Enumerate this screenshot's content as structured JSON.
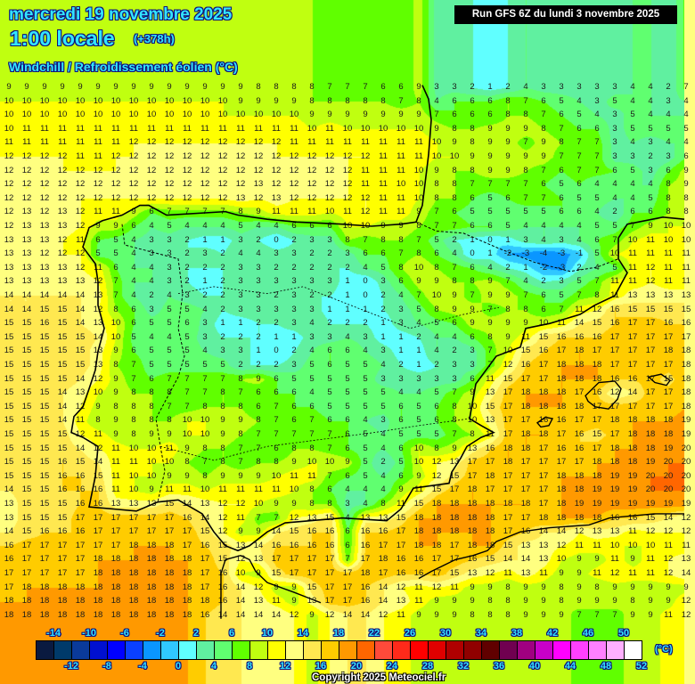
{
  "header": {
    "date": "mercredi 19 novembre 2025",
    "time": "1:00 locale",
    "lead": "(+378h)",
    "parameter": "Windchill / Refroidissement éolien (°C)"
  },
  "run_info": "Run GFS 6Z du lundi 3 novembre 2025",
  "copyright": "Copyright 2025 Meteociel.fr",
  "legend": {
    "unit": "(°C)",
    "min": -16,
    "step": 2,
    "top_labels": [
      "-14",
      "-10",
      "-6",
      "-2",
      "2",
      "6",
      "10",
      "14",
      "18",
      "22",
      "26",
      "30",
      "34",
      "38",
      "42",
      "46",
      "50"
    ],
    "bottom_labels": [
      "-12",
      "-8",
      "-4",
      "0",
      "4",
      "8",
      "12",
      "16",
      "20",
      "24",
      "28",
      "32",
      "36",
      "40",
      "44",
      "48",
      "52"
    ],
    "colors": [
      "#0a1a40",
      "#003a6a",
      "#0a3a9a",
      "#0010d0",
      "#0000ff",
      "#0a40ff",
      "#0a96ff",
      "#30c8ff",
      "#60ffff",
      "#60f0a0",
      "#60ff70",
      "#60ff00",
      "#c0ff10",
      "#ffff00",
      "#ffff80",
      "#ffe850",
      "#ffcc00",
      "#ff9900",
      "#ff6600",
      "#ff4a3a",
      "#ff2a1a",
      "#ff0000",
      "#e00000",
      "#b00000",
      "#900000",
      "#600000",
      "#700050",
      "#a00080",
      "#c800c8",
      "#ff00ff",
      "#ff40ff",
      "#ff80ff",
      "#ffb0ff",
      "#ffffff"
    ]
  },
  "grid": [
    [
      9,
      9,
      9,
      9,
      9,
      9,
      9,
      9,
      9,
      9,
      9,
      9,
      9,
      9,
      8,
      8,
      8,
      8,
      7,
      7,
      7,
      6,
      6,
      9,
      3,
      3,
      2,
      1,
      2,
      4,
      3,
      3,
      3,
      3,
      3,
      4,
      4,
      2,
      7
    ],
    [
      10,
      10,
      10,
      10,
      10,
      10,
      10,
      10,
      10,
      10,
      10,
      10,
      10,
      9,
      9,
      9,
      9,
      8,
      8,
      8,
      8,
      8,
      7,
      8,
      4,
      6,
      6,
      6,
      8,
      7,
      6,
      5,
      4,
      3,
      5,
      4,
      4,
      3,
      4
    ],
    [
      10,
      10,
      10,
      10,
      10,
      10,
      10,
      10,
      10,
      10,
      10,
      10,
      10,
      10,
      10,
      10,
      10,
      9,
      9,
      9,
      9,
      9,
      9,
      9,
      7,
      6,
      6,
      6,
      8,
      8,
      7,
      6,
      5,
      4,
      3,
      5,
      4,
      4,
      4
    ],
    [
      10,
      11,
      11,
      11,
      11,
      11,
      11,
      11,
      11,
      11,
      11,
      11,
      11,
      11,
      11,
      11,
      11,
      10,
      11,
      10,
      10,
      10,
      10,
      10,
      9,
      8,
      8,
      9,
      9,
      9,
      8,
      7,
      6,
      6,
      3,
      5,
      5,
      5,
      5
    ],
    [
      11,
      11,
      11,
      11,
      11,
      11,
      11,
      12,
      12,
      12,
      12,
      12,
      12,
      12,
      12,
      12,
      11,
      11,
      11,
      11,
      11,
      11,
      11,
      11,
      10,
      9,
      8,
      9,
      9,
      7,
      9,
      8,
      7,
      7,
      3,
      4,
      3,
      4,
      4
    ],
    [
      12,
      12,
      12,
      12,
      11,
      11,
      12,
      12,
      12,
      12,
      12,
      12,
      12,
      12,
      12,
      12,
      12,
      12,
      12,
      12,
      12,
      11,
      11,
      11,
      10,
      10,
      9,
      9,
      9,
      9,
      9,
      7,
      7,
      7,
      3,
      3,
      2,
      3,
      6
    ],
    [
      12,
      12,
      12,
      12,
      12,
      12,
      12,
      12,
      12,
      12,
      12,
      12,
      12,
      12,
      12,
      12,
      12,
      12,
      12,
      12,
      11,
      11,
      11,
      10,
      9,
      8,
      8,
      9,
      9,
      8,
      7,
      6,
      7,
      7,
      6,
      5,
      3,
      6,
      9
    ],
    [
      12,
      12,
      12,
      12,
      12,
      12,
      12,
      12,
      12,
      12,
      12,
      12,
      12,
      12,
      13,
      12,
      12,
      12,
      12,
      12,
      11,
      11,
      10,
      10,
      8,
      8,
      7,
      7,
      7,
      7,
      6,
      5,
      6,
      4,
      4,
      4,
      4,
      8,
      9
    ],
    [
      12,
      12,
      12,
      12,
      12,
      12,
      12,
      12,
      12,
      12,
      12,
      12,
      12,
      13,
      12,
      13,
      12,
      12,
      12,
      12,
      12,
      11,
      11,
      10,
      8,
      8,
      6,
      5,
      6,
      7,
      7,
      6,
      5,
      5,
      4,
      4,
      5,
      8,
      8
    ],
    [
      12,
      13,
      12,
      13,
      12,
      11,
      11,
      9,
      6,
      7,
      7,
      7,
      7,
      8,
      9,
      11,
      11,
      11,
      10,
      11,
      12,
      11,
      11,
      9,
      7,
      6,
      5,
      5,
      5,
      5,
      5,
      6,
      6,
      4,
      2,
      6,
      6,
      8,
      8
    ],
    [
      12,
      13,
      13,
      13,
      12,
      9,
      9,
      6,
      4,
      5,
      4,
      4,
      4,
      5,
      4,
      4,
      6,
      6,
      6,
      10,
      10,
      9,
      9,
      8,
      7,
      7,
      6,
      6,
      5,
      4,
      4,
      4,
      4,
      5,
      5,
      7,
      9,
      10,
      10
    ],
    [
      13,
      13,
      13,
      12,
      11,
      6,
      5,
      4,
      3,
      3,
      2,
      1,
      1,
      3,
      2,
      0,
      2,
      3,
      3,
      8,
      7,
      8,
      8,
      7,
      5,
      2,
      1,
      0,
      1,
      3,
      4,
      3,
      4,
      6,
      7,
      10,
      11,
      10,
      10
    ],
    [
      13,
      13,
      12,
      12,
      12,
      5,
      5,
      4,
      3,
      3,
      2,
      3,
      2,
      4,
      4,
      3,
      3,
      2,
      2,
      3,
      6,
      6,
      7,
      8,
      6,
      4,
      0,
      1,
      -2,
      -3,
      -4,
      -3,
      -1,
      5,
      10,
      11,
      11,
      11,
      11
    ],
    [
      13,
      13,
      13,
      13,
      12,
      11,
      6,
      4,
      4,
      3,
      2,
      2,
      2,
      3,
      3,
      2,
      2,
      2,
      2,
      2,
      4,
      5,
      8,
      10,
      8,
      7,
      6,
      4,
      2,
      1,
      -2,
      -3,
      2,
      4,
      5,
      11,
      12,
      11,
      11
    ],
    [
      13,
      13,
      13,
      13,
      13,
      12,
      7,
      4,
      4,
      3,
      2,
      1,
      2,
      3,
      3,
      3,
      3,
      3,
      3,
      1,
      0,
      3,
      6,
      9,
      9,
      8,
      8,
      9,
      7,
      4,
      2,
      3,
      5,
      7,
      11,
      11,
      12,
      11,
      11
    ],
    [
      14,
      14,
      14,
      14,
      14,
      13,
      7,
      4,
      2,
      4,
      3,
      2,
      2,
      3,
      3,
      2,
      3,
      2,
      2,
      1,
      0,
      2,
      4,
      7,
      10,
      9,
      7,
      9,
      9,
      7,
      6,
      5,
      7,
      8,
      11,
      13,
      13,
      13,
      13
    ],
    [
      14,
      14,
      15,
      15,
      14,
      12,
      8,
      6,
      3,
      5,
      5,
      4,
      2,
      3,
      3,
      3,
      3,
      3,
      1,
      1,
      1,
      2,
      3,
      5,
      8,
      9,
      9,
      7,
      8,
      8,
      6,
      7,
      11,
      12,
      16,
      15,
      15,
      15,
      15
    ],
    [
      15,
      15,
      16,
      15,
      14,
      13,
      10,
      6,
      5,
      5,
      6,
      3,
      1,
      1,
      2,
      2,
      3,
      4,
      2,
      2,
      2,
      1,
      3,
      4,
      5,
      6,
      9,
      9,
      9,
      9,
      10,
      11,
      14,
      15,
      16,
      17,
      17,
      16,
      16
    ],
    [
      15,
      15,
      15,
      15,
      15,
      14,
      10,
      5,
      4,
      4,
      5,
      3,
      2,
      2,
      2,
      1,
      1,
      3,
      3,
      4,
      3,
      1,
      1,
      2,
      4,
      4,
      6,
      8,
      9,
      11,
      15,
      16,
      16,
      16,
      17,
      17,
      17,
      17,
      17
    ],
    [
      15,
      15,
      15,
      15,
      15,
      13,
      9,
      6,
      5,
      5,
      5,
      4,
      3,
      3,
      1,
      0,
      2,
      4,
      6,
      6,
      4,
      3,
      1,
      1,
      4,
      2,
      3,
      7,
      10,
      15,
      16,
      17,
      18,
      17,
      17,
      17,
      17,
      18,
      18
    ],
    [
      15,
      15,
      15,
      15,
      15,
      13,
      8,
      7,
      5,
      5,
      5,
      5,
      5,
      2,
      2,
      2,
      3,
      5,
      6,
      5,
      5,
      4,
      2,
      1,
      2,
      3,
      3,
      7,
      12,
      16,
      17,
      18,
      18,
      18,
      17,
      17,
      17,
      17,
      18
    ],
    [
      15,
      15,
      15,
      15,
      14,
      12,
      9,
      7,
      6,
      7,
      7,
      7,
      7,
      8,
      9,
      6,
      5,
      5,
      5,
      5,
      5,
      3,
      3,
      3,
      3,
      3,
      6,
      11,
      15,
      17,
      17,
      18,
      18,
      18,
      16,
      16,
      17,
      15,
      18
    ],
    [
      15,
      15,
      15,
      14,
      13,
      10,
      9,
      8,
      8,
      8,
      7,
      7,
      8,
      7,
      6,
      6,
      6,
      4,
      5,
      5,
      5,
      5,
      4,
      4,
      5,
      7,
      9,
      13,
      17,
      18,
      18,
      18,
      17,
      16,
      12,
      14,
      17,
      17,
      18
    ],
    [
      15,
      15,
      15,
      14,
      12,
      9,
      8,
      8,
      8,
      7,
      7,
      8,
      8,
      8,
      6,
      7,
      6,
      6,
      5,
      5,
      5,
      5,
      6,
      5,
      6,
      8,
      10,
      15,
      17,
      18,
      18,
      18,
      18,
      17,
      17,
      17,
      17,
      17,
      18
    ],
    [
      15,
      15,
      15,
      14,
      11,
      8,
      9,
      8,
      8,
      8,
      10,
      10,
      9,
      9,
      8,
      7,
      6,
      7,
      6,
      6,
      4,
      3,
      6,
      5,
      6,
      8,
      10,
      13,
      17,
      17,
      16,
      16,
      17,
      17,
      18,
      18,
      18,
      18,
      19
    ],
    [
      15,
      15,
      15,
      15,
      12,
      11,
      9,
      8,
      9,
      9,
      10,
      10,
      9,
      8,
      7,
      7,
      7,
      7,
      7,
      6,
      5,
      4,
      5,
      5,
      5,
      7,
      8,
      11,
      17,
      18,
      18,
      17,
      16,
      15,
      17,
      18,
      18,
      18,
      19
    ],
    [
      15,
      15,
      15,
      15,
      14,
      12,
      11,
      10,
      10,
      11,
      9,
      8,
      8,
      7,
      7,
      6,
      8,
      8,
      7,
      6,
      5,
      4,
      6,
      10,
      8,
      9,
      13,
      16,
      18,
      18,
      17,
      16,
      16,
      17,
      18,
      18,
      18,
      19,
      20
    ],
    [
      15,
      15,
      15,
      16,
      15,
      14,
      11,
      11,
      10,
      10,
      8,
      7,
      8,
      7,
      8,
      8,
      9,
      10,
      10,
      9,
      5,
      2,
      5,
      10,
      12,
      13,
      17,
      17,
      18,
      17,
      17,
      17,
      17,
      18,
      18,
      18,
      19,
      20,
      20
    ],
    [
      15,
      15,
      15,
      16,
      16,
      15,
      11,
      10,
      10,
      9,
      9,
      8,
      9,
      9,
      9,
      10,
      11,
      11,
      7,
      6,
      5,
      4,
      6,
      9,
      12,
      15,
      17,
      18,
      17,
      17,
      17,
      18,
      18,
      18,
      19,
      19,
      20,
      20,
      20
    ],
    [
      14,
      15,
      15,
      16,
      16,
      16,
      11,
      10,
      9,
      11,
      11,
      10,
      11,
      11,
      11,
      11,
      10,
      8,
      6,
      4,
      4,
      4,
      9,
      11,
      15,
      17,
      18,
      17,
      17,
      17,
      17,
      18,
      18,
      19,
      19,
      19,
      20,
      20,
      20
    ],
    [
      13,
      15,
      15,
      15,
      16,
      16,
      13,
      13,
      13,
      15,
      14,
      13,
      12,
      12,
      10,
      9,
      9,
      8,
      8,
      3,
      4,
      8,
      11,
      15,
      18,
      18,
      18,
      18,
      18,
      18,
      17,
      18,
      19,
      19,
      19,
      19,
      19,
      19,
      19
    ],
    [
      13,
      15,
      15,
      15,
      17,
      17,
      17,
      17,
      17,
      17,
      16,
      14,
      12,
      11,
      7,
      7,
      12,
      13,
      15,
      4,
      13,
      13,
      15,
      18,
      18,
      18,
      18,
      18,
      17,
      17,
      18,
      18,
      18,
      18,
      16,
      16,
      15,
      14,
      12
    ],
    [
      14,
      15,
      16,
      16,
      16,
      17,
      17,
      17,
      17,
      17,
      17,
      15,
      12,
      9,
      9,
      14,
      15,
      16,
      16,
      6,
      16,
      16,
      17,
      18,
      18,
      18,
      18,
      18,
      17,
      16,
      14,
      14,
      12,
      13,
      13,
      11,
      12,
      12,
      12
    ],
    [
      16,
      17,
      17,
      17,
      17,
      17,
      17,
      18,
      18,
      18,
      17,
      16,
      15,
      13,
      14,
      16,
      16,
      16,
      16,
      6,
      16,
      17,
      17,
      18,
      18,
      17,
      18,
      18,
      15,
      13,
      13,
      12,
      11,
      11,
      10,
      10,
      10,
      11,
      11
    ],
    [
      16,
      17,
      17,
      17,
      17,
      18,
      18,
      18,
      18,
      18,
      18,
      17,
      15,
      12,
      13,
      17,
      17,
      17,
      17,
      7,
      17,
      18,
      16,
      16,
      17,
      17,
      16,
      15,
      14,
      14,
      13,
      10,
      9,
      9,
      11,
      9,
      11,
      12,
      13
    ],
    [
      17,
      17,
      17,
      17,
      17,
      18,
      18,
      18,
      18,
      18,
      18,
      17,
      16,
      10,
      9,
      15,
      17,
      17,
      17,
      17,
      18,
      17,
      16,
      16,
      17,
      15,
      13,
      12,
      11,
      13,
      11,
      9,
      9,
      11,
      12,
      11,
      11,
      12,
      14
    ],
    [
      17,
      18,
      18,
      18,
      18,
      18,
      18,
      18,
      18,
      18,
      18,
      17,
      16,
      14,
      12,
      9,
      9,
      15,
      17,
      17,
      16,
      14,
      12,
      11,
      12,
      11,
      9,
      9,
      8,
      9,
      9,
      8,
      9,
      8,
      9,
      9,
      9,
      9,
      9
    ],
    [
      18,
      18,
      18,
      18,
      18,
      18,
      18,
      18,
      18,
      18,
      18,
      18,
      16,
      14,
      13,
      11,
      9,
      13,
      17,
      17,
      16,
      14,
      13,
      11,
      9,
      9,
      9,
      8,
      8,
      9,
      9,
      8,
      9,
      9,
      9,
      8,
      9,
      9,
      12
    ],
    [
      18,
      18,
      18,
      18,
      18,
      18,
      18,
      18,
      18,
      18,
      18,
      16,
      14,
      14,
      14,
      14,
      12,
      9,
      12,
      14,
      14,
      12,
      11,
      9,
      9,
      9,
      8,
      8,
      8,
      9,
      9,
      9,
      7,
      7,
      7,
      9,
      9,
      11,
      12
    ]
  ]
}
